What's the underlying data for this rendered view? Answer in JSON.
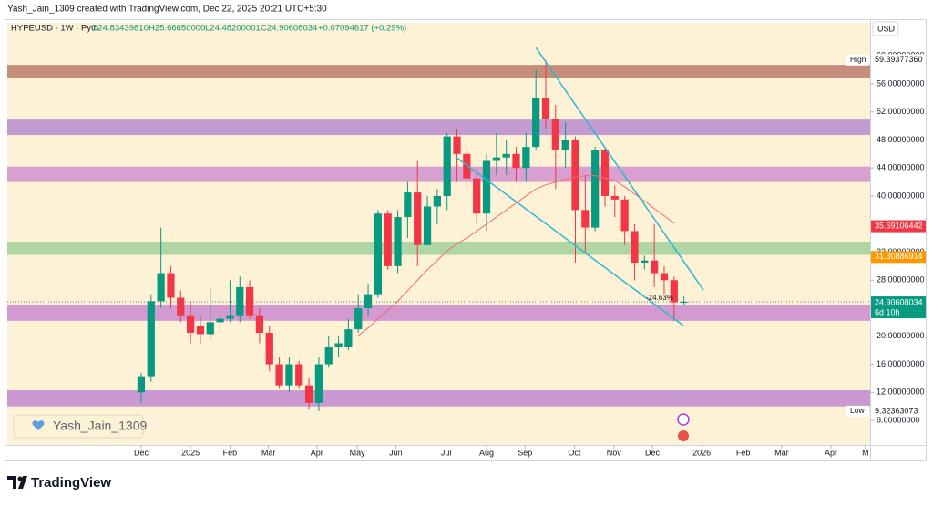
{
  "header": {
    "credit": "Yash_Jain_1309 created with TradingView.com, Dec 22, 2025 20:21 UTC+5:30",
    "symbol": "HYPEUSD · 1W · Pyth",
    "ohlc": [
      "O24.83439810",
      "H25.66650000",
      "L24.48200001",
      "C24.90608034",
      "+0.07094617 (+0.29%)"
    ]
  },
  "currency": "USD",
  "watermark": "Yash_Jain_1309",
  "footer": "TradingView",
  "chart_data": {
    "type": "candlestick",
    "up_color": "#089981",
    "down_color": "#f23645",
    "x": [
      0,
      1,
      2,
      3,
      4,
      5,
      6,
      7,
      8,
      9,
      10,
      11,
      12,
      13,
      14,
      15,
      16,
      17,
      18,
      19,
      20,
      21,
      22,
      23,
      24,
      25,
      26,
      27,
      28,
      29,
      30,
      31,
      32,
      33,
      34,
      35,
      36,
      37,
      38,
      39,
      40,
      41,
      42,
      43,
      44,
      45,
      46,
      47,
      48,
      49,
      50,
      51,
      52,
      53,
      54,
      55
    ],
    "candles": [
      [
        12,
        14.8,
        10.5,
        14.3
      ],
      [
        14.3,
        26,
        13.5,
        25
      ],
      [
        25,
        35.5,
        24,
        29
      ],
      [
        29,
        30,
        24,
        25.5
      ],
      [
        25.5,
        26.5,
        22,
        23
      ],
      [
        23,
        25,
        19,
        20.5
      ],
      [
        21.5,
        23,
        19,
        20.3
      ],
      [
        20.3,
        27,
        19.5,
        22
      ],
      [
        22,
        24,
        21,
        22.5
      ],
      [
        22.5,
        28,
        22,
        23
      ],
      [
        23,
        28.5,
        22,
        27
      ],
      [
        27,
        28,
        22.5,
        23
      ],
      [
        23,
        24,
        19,
        20.5
      ],
      [
        20.5,
        21.5,
        15,
        16
      ],
      [
        16,
        17,
        12.5,
        13
      ],
      [
        13,
        17,
        12,
        16
      ],
      [
        16,
        16.5,
        12.5,
        13
      ],
      [
        13,
        14,
        9.7,
        10.5
      ],
      [
        10.5,
        17,
        9.32363073,
        16
      ],
      [
        16,
        20,
        15.5,
        18.5
      ],
      [
        18.5,
        20,
        17,
        19
      ],
      [
        18.5,
        22.5,
        18,
        21
      ],
      [
        21,
        26,
        20.5,
        24
      ],
      [
        24,
        27.5,
        23,
        26
      ],
      [
        26,
        38,
        25.5,
        37.5
      ],
      [
        37.5,
        38,
        29.5,
        30
      ],
      [
        30,
        38,
        29,
        37
      ],
      [
        37,
        42,
        34,
        40.5
      ],
      [
        40.5,
        45,
        30,
        33
      ],
      [
        33,
        40,
        33,
        38.5
      ],
      [
        38.5,
        41,
        36,
        40
      ],
      [
        40,
        49,
        38,
        48.5
      ],
      [
        48.5,
        49.5,
        42,
        46
      ],
      [
        46,
        47,
        41,
        42.5
      ],
      [
        42.5,
        44,
        36,
        37.5
      ],
      [
        37.5,
        46,
        35,
        45
      ],
      [
        45,
        49,
        43,
        45.5
      ],
      [
        45.5,
        48,
        43,
        46
      ],
      [
        46,
        47,
        42,
        44
      ],
      [
        44,
        49,
        42,
        47
      ],
      [
        47,
        58,
        46.5,
        54
      ],
      [
        54,
        59.3937736,
        49.5,
        51
      ],
      [
        51,
        53,
        41,
        46.5
      ],
      [
        46.5,
        50.5,
        44,
        48
      ],
      [
        48,
        48.5,
        30.5,
        38
      ],
      [
        38,
        43,
        32,
        35.5
      ],
      [
        35.5,
        47,
        35,
        46.5
      ],
      [
        46.5,
        47,
        38.5,
        40
      ],
      [
        40,
        41.5,
        37,
        39.5
      ],
      [
        39.5,
        40,
        33,
        35
      ],
      [
        35,
        36,
        28,
        30.5
      ],
      [
        30.5,
        31.5,
        29.5,
        30.8
      ],
      [
        30.8,
        36,
        27,
        29
      ],
      [
        29,
        30,
        26,
        28
      ],
      [
        28,
        28.5,
        22.2,
        24.83
      ],
      [
        24.8343981,
        25.6665,
        24.48200001,
        24.90608034
      ]
    ],
    "overlay": {
      "color": "#f26d6d",
      "values": [
        null,
        null,
        null,
        null,
        null,
        null,
        null,
        null,
        null,
        null,
        null,
        null,
        null,
        null,
        null,
        null,
        null,
        null,
        null,
        null,
        null,
        null,
        20.1,
        21.2,
        22.5,
        23.7,
        25,
        26.5,
        28,
        29.5,
        30.8,
        32.2,
        33.2,
        34,
        35,
        36,
        37,
        38,
        39,
        40,
        41,
        41.6,
        42,
        42.4,
        42.7,
        42.9,
        42.9,
        42.6,
        42.2,
        41.3,
        40.3,
        39.3,
        38.2,
        37.2,
        36.1,
        null
      ]
    },
    "zones": [
      {
        "from": 56.8,
        "to": 58.7,
        "color": "#bf8372"
      },
      {
        "from": 48.7,
        "to": 50.9,
        "color": "#bb92cf"
      },
      {
        "from": 42.0,
        "to": 44.2,
        "color": "#d497cf"
      },
      {
        "from": 31.6,
        "to": 33.5,
        "color": "#a9d3a0"
      },
      {
        "from": 22.2,
        "to": 24.5,
        "color": "#cd90cf"
      },
      {
        "from": 10.0,
        "to": 12.3,
        "color": "#c58fd1"
      }
    ],
    "xlim": [
      -13.57,
      73.87
    ],
    "xticks": [
      {
        "value": 0,
        "label": "Dec"
      },
      {
        "value": 5.0,
        "label": "2025"
      },
      {
        "value": 9.0,
        "label": "Feb"
      },
      {
        "value": 12.9,
        "label": "Mar"
      },
      {
        "value": 17.8,
        "label": "Apr"
      },
      {
        "value": 21.9,
        "label": "May"
      },
      {
        "value": 25.8,
        "label": "Jun"
      },
      {
        "value": 30.9,
        "label": "Jul"
      },
      {
        "value": 35.0,
        "label": "Aug"
      },
      {
        "value": 38.9,
        "label": "Sep"
      },
      {
        "value": 43.9,
        "label": "Oct"
      },
      {
        "value": 47.9,
        "label": "Nov"
      },
      {
        "value": 51.8,
        "label": "Dec"
      },
      {
        "value": 56.8,
        "label": "2026"
      },
      {
        "value": 61.0,
        "label": "Feb"
      },
      {
        "value": 64.9,
        "label": "Mar"
      },
      {
        "value": 69.9,
        "label": "Apr"
      },
      {
        "value": 73.4,
        "label": "M"
      }
    ],
    "ylim": [
      4.5,
      64.7
    ],
    "yticks": [
      {
        "value": 8,
        "label": "8.00000000"
      },
      {
        "value": 12,
        "label": "12.00000000"
      },
      {
        "value": 16,
        "label": "16.00000000"
      },
      {
        "value": 20,
        "label": "20.00000000"
      },
      {
        "value": 24,
        "label": "24.00000000"
      },
      {
        "value": 28,
        "label": "28.00000000"
      },
      {
        "value": 32,
        "label": "32.00000000"
      },
      {
        "value": 36,
        "label": "36.00000000"
      },
      {
        "value": 40,
        "label": "40.00000000"
      },
      {
        "value": 44,
        "label": "44.00000000"
      },
      {
        "value": 48,
        "label": "48.00000000"
      },
      {
        "value": 52,
        "label": "52.00000000"
      },
      {
        "value": 56,
        "label": "56.00000000"
      },
      {
        "value": 60,
        "label": "60.00000000"
      }
    ],
    "high": {
      "label": "High",
      "price": {
        "value": 59.3937736,
        "label": "59.39377360"
      }
    },
    "low": {
      "label": "Low",
      "price": {
        "value": 9.32363073,
        "label": "9.32363073"
      }
    },
    "price_tags": [
      {
        "value": 35.69106442,
        "label": "35.69106442",
        "color": "#f23645"
      },
      {
        "value": 31.30886914,
        "label": "31.30886914",
        "color": "#ff9800"
      }
    ],
    "last_price": {
      "value": 24.90608034,
      "label": "24.90608034",
      "countdown": "6d 10h",
      "color": "#089981"
    },
    "annotation": "-24.63%"
  }
}
